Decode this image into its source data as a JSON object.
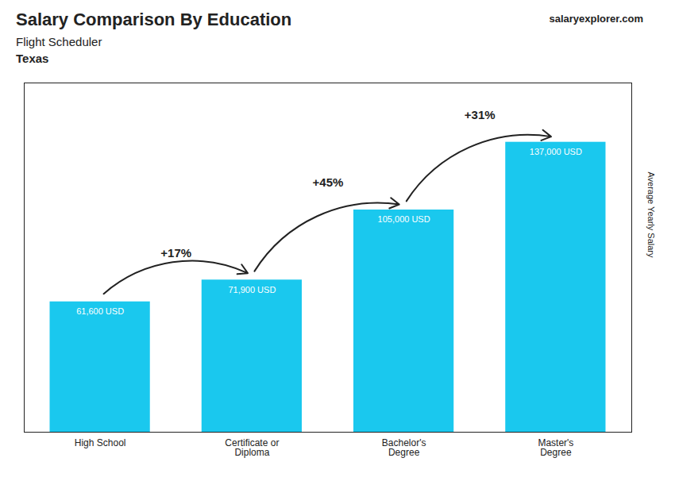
{
  "chart_data": {
    "type": "bar",
    "title": "Salary Comparison By Education",
    "subtitle": "Flight Scheduler",
    "ylabel": "Average Yearly Salary",
    "categories": [
      "High School",
      "Certificate or\nDiploma",
      "Bachelor's\nDegree",
      "Master's\nDegree"
    ],
    "values": [
      61600,
      71900,
      105000,
      137000
    ],
    "value_labels": [
      "61,600 USD",
      "71,900 USD",
      "105,000 USD",
      "137,000 USD"
    ],
    "data_labels": true,
    "color": "#1AC8EE",
    "ylim": [
      0,
      165000
    ],
    "tick_labels": "x",
    "grid": false,
    "annotations": [
      {
        "text": "+17%",
        "from": "High School",
        "to": "Certificate or\nDiploma"
      },
      {
        "text": "+45%",
        "from": "Certificate or\nDiploma",
        "to": "Bachelor's\nDegree"
      },
      {
        "text": "+31%",
        "from": "Bachelor's\nDegree",
        "to": "Master's\nDegree"
      },
      {
        "text": "Texas"
      },
      {
        "text": "salaryexplorer.com"
      }
    ]
  }
}
